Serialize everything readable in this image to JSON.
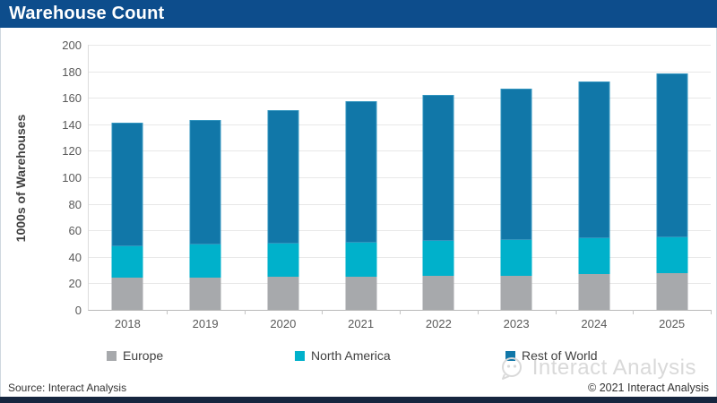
{
  "header": {
    "title": "Warehouse Count",
    "bg_color": "#0d4d8c"
  },
  "chart_data": {
    "type": "bar",
    "stacked": true,
    "title": "Warehouse Count",
    "categories": [
      "2018",
      "2019",
      "2020",
      "2021",
      "2022",
      "2023",
      "2024",
      "2025"
    ],
    "series": [
      {
        "name": "Europe",
        "color": "#a7a9ac",
        "values": [
          24,
          24,
          25,
          25,
          26,
          26,
          27,
          28
        ]
      },
      {
        "name": "North America",
        "color": "#00b1cb",
        "values": [
          24,
          25,
          25,
          26,
          26,
          27,
          27,
          27
        ]
      },
      {
        "name": "Rest of World",
        "color": "#1177a8",
        "values": [
          93,
          94.5,
          100.5,
          106.5,
          110,
          114,
          118,
          123.5
        ]
      }
    ],
    "totals": [
      141,
      143.5,
      150.5,
      157.5,
      162,
      167,
      172,
      178.5
    ],
    "xlabel": "",
    "ylabel": "1000s of Warehouses",
    "ylim": [
      0,
      200
    ],
    "ytick_step": 20,
    "grid": true,
    "legend_position": "bottom"
  },
  "footer": {
    "source": "Source: Interact Analysis",
    "copyright": "© 2021 Interact Analysis"
  },
  "watermark": {
    "text": "Interact Analysis"
  }
}
